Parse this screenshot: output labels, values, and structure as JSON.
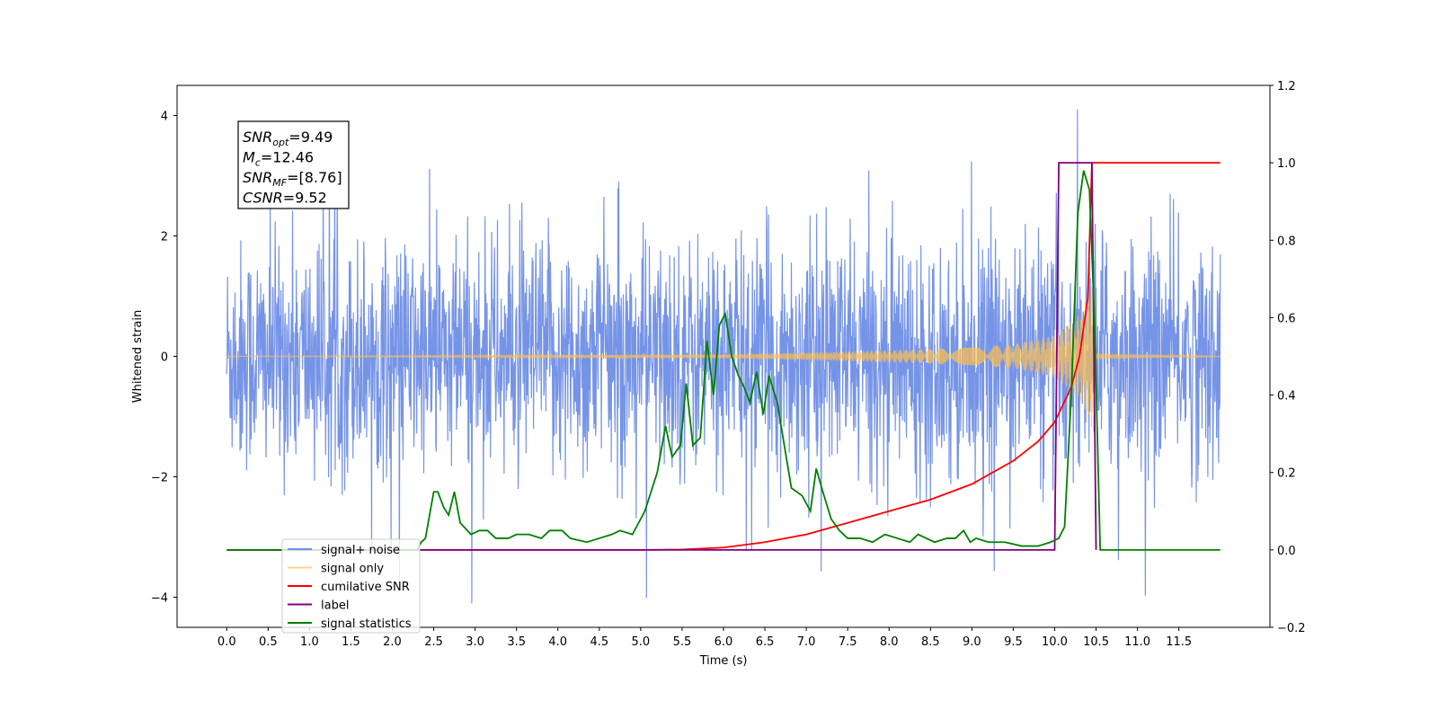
{
  "chart_data": {
    "type": "line",
    "xlabel": "Time (s)",
    "ylabel_left": "Whitened strain",
    "ylabel_right": "",
    "xlim": [
      -0.6,
      12.6
    ],
    "ylim_left": [
      -4.5,
      4.5
    ],
    "ylim_right": [
      -0.2,
      1.2
    ],
    "x_ticks": [
      0.0,
      0.5,
      1.0,
      1.5,
      2.0,
      2.5,
      3.0,
      3.5,
      4.0,
      4.5,
      5.0,
      5.5,
      6.0,
      6.5,
      7.0,
      7.5,
      8.0,
      8.5,
      9.0,
      9.5,
      10.0,
      10.5,
      11.0,
      11.5
    ],
    "x_tick_labels": [
      "0.0",
      "0.5",
      "1.0",
      "1.5",
      "2.0",
      "2.5",
      "3.0",
      "3.5",
      "4.0",
      "4.5",
      "5.0",
      "5.5",
      "6.0",
      "6.5",
      "7.0",
      "7.5",
      "8.0",
      "8.5",
      "9.0",
      "9.5",
      "10.0",
      "10.5",
      "11.0",
      "11.5"
    ],
    "y_left_ticks": [
      -4,
      -2,
      0,
      2,
      4
    ],
    "y_left_tick_labels": [
      "−4",
      "−2",
      "0",
      "2",
      "4"
    ],
    "y_right_ticks": [
      -0.2,
      0.0,
      0.2,
      0.4,
      0.6,
      0.8,
      1.0,
      1.2
    ],
    "y_right_tick_labels": [
      "−0.2",
      "0.0",
      "0.2",
      "0.4",
      "0.6",
      "0.8",
      "1.0",
      "1.2"
    ],
    "grid": false,
    "legend_position": "lower-left",
    "annotation": {
      "lines": [
        {
          "base": "SNR",
          "sub": "opt",
          "value": "=9.49"
        },
        {
          "base": "M",
          "sub": "c",
          "value": "=12.46"
        },
        {
          "base": "SNR",
          "sub": "MF",
          "value": "=[8.76]"
        },
        {
          "base": "CSNR",
          "sub": "",
          "value": "=9.52"
        }
      ]
    },
    "series": [
      {
        "name": "signal+ noise",
        "color": "#6f8ee6",
        "axis": "left",
        "description": "dense noisy whitened strain, roughly ±2.5 with spikes to ±4",
        "x_range": [
          0.0,
          12.0
        ],
        "envelope": [
          3.0,
          3.4
        ]
      },
      {
        "name": "signal only",
        "color": "#ffc04d",
        "axis": "left",
        "description": "chirp waveform with amplitude growing until merger at ~10.45 s",
        "x_range": [
          0.0,
          12.0
        ],
        "amplitude_points": [
          [
            0,
            0.0
          ],
          [
            6,
            0.03
          ],
          [
            7.5,
            0.08
          ],
          [
            8.5,
            0.12
          ],
          [
            9.0,
            0.15
          ],
          [
            9.5,
            0.2
          ],
          [
            10.0,
            0.35
          ],
          [
            10.3,
            0.7
          ],
          [
            10.45,
            1.2
          ],
          [
            10.5,
            0.05
          ],
          [
            12.0,
            0.0
          ]
        ]
      },
      {
        "name": "cumilative SNR",
        "color": "#ff0000",
        "axis": "right",
        "points": [
          [
            0,
            0.0
          ],
          [
            5.0,
            0.0
          ],
          [
            5.5,
            0.001
          ],
          [
            6.0,
            0.006
          ],
          [
            6.5,
            0.02
          ],
          [
            7.0,
            0.04
          ],
          [
            7.5,
            0.07
          ],
          [
            8.0,
            0.1
          ],
          [
            8.5,
            0.13
          ],
          [
            9.0,
            0.17
          ],
          [
            9.5,
            0.23
          ],
          [
            9.8,
            0.28
          ],
          [
            10.0,
            0.33
          ],
          [
            10.2,
            0.42
          ],
          [
            10.3,
            0.5
          ],
          [
            10.4,
            0.65
          ],
          [
            10.45,
            1.0
          ],
          [
            12.0,
            1.0
          ]
        ]
      },
      {
        "name": "label",
        "color": "#800080",
        "axis": "right",
        "points": [
          [
            0,
            0.0
          ],
          [
            10.0,
            0.0
          ],
          [
            10.05,
            1.0
          ],
          [
            10.45,
            1.0
          ],
          [
            10.5,
            0.0
          ]
        ]
      },
      {
        "name": "signal statistics",
        "color": "#008000",
        "axis": "right",
        "points": [
          [
            0,
            0.0
          ],
          [
            2.3,
            0.0
          ],
          [
            2.35,
            0.02
          ],
          [
            2.4,
            0.03
          ],
          [
            2.5,
            0.15
          ],
          [
            2.55,
            0.15
          ],
          [
            2.62,
            0.11
          ],
          [
            2.68,
            0.09
          ],
          [
            2.75,
            0.15
          ],
          [
            2.82,
            0.07
          ],
          [
            2.95,
            0.04
          ],
          [
            3.05,
            0.05
          ],
          [
            3.15,
            0.05
          ],
          [
            3.25,
            0.03
          ],
          [
            3.4,
            0.03
          ],
          [
            3.5,
            0.04
          ],
          [
            3.65,
            0.04
          ],
          [
            3.8,
            0.03
          ],
          [
            3.9,
            0.05
          ],
          [
            4.05,
            0.05
          ],
          [
            4.15,
            0.03
          ],
          [
            4.35,
            0.02
          ],
          [
            4.5,
            0.03
          ],
          [
            4.65,
            0.04
          ],
          [
            4.75,
            0.05
          ],
          [
            4.9,
            0.04
          ],
          [
            5.05,
            0.1
          ],
          [
            5.2,
            0.2
          ],
          [
            5.3,
            0.32
          ],
          [
            5.38,
            0.24
          ],
          [
            5.48,
            0.27
          ],
          [
            5.55,
            0.43
          ],
          [
            5.63,
            0.27
          ],
          [
            5.72,
            0.29
          ],
          [
            5.8,
            0.54
          ],
          [
            5.88,
            0.4
          ],
          [
            5.95,
            0.58
          ],
          [
            6.02,
            0.61
          ],
          [
            6.1,
            0.5
          ],
          [
            6.18,
            0.45
          ],
          [
            6.25,
            0.42
          ],
          [
            6.32,
            0.38
          ],
          [
            6.4,
            0.46
          ],
          [
            6.48,
            0.35
          ],
          [
            6.55,
            0.45
          ],
          [
            6.65,
            0.38
          ],
          [
            6.75,
            0.25
          ],
          [
            6.82,
            0.16
          ],
          [
            6.95,
            0.14
          ],
          [
            7.05,
            0.1
          ],
          [
            7.12,
            0.21
          ],
          [
            7.2,
            0.15
          ],
          [
            7.3,
            0.08
          ],
          [
            7.4,
            0.05
          ],
          [
            7.5,
            0.03
          ],
          [
            7.65,
            0.03
          ],
          [
            7.8,
            0.02
          ],
          [
            7.95,
            0.04
          ],
          [
            8.1,
            0.03
          ],
          [
            8.25,
            0.02
          ],
          [
            8.35,
            0.04
          ],
          [
            8.45,
            0.03
          ],
          [
            8.55,
            0.02
          ],
          [
            8.7,
            0.03
          ],
          [
            8.8,
            0.03
          ],
          [
            8.9,
            0.05
          ],
          [
            8.98,
            0.02
          ],
          [
            9.05,
            0.03
          ],
          [
            9.2,
            0.02
          ],
          [
            9.4,
            0.02
          ],
          [
            9.6,
            0.01
          ],
          [
            9.8,
            0.01
          ],
          [
            9.95,
            0.02
          ],
          [
            10.05,
            0.03
          ],
          [
            10.12,
            0.06
          ],
          [
            10.2,
            0.4
          ],
          [
            10.28,
            0.87
          ],
          [
            10.35,
            0.98
          ],
          [
            10.42,
            0.93
          ],
          [
            10.48,
            0.6
          ],
          [
            10.55,
            0.0
          ],
          [
            12.0,
            0.0
          ]
        ]
      }
    ]
  }
}
